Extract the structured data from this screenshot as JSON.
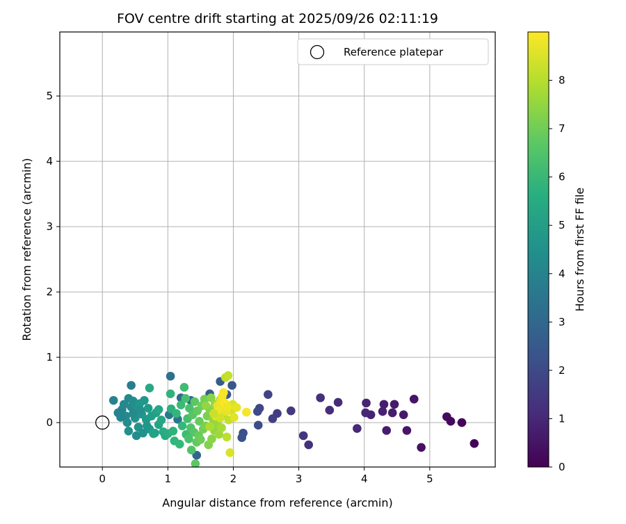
{
  "chart_data": {
    "type": "scatter",
    "title": "FOV centre drift starting at 2025/09/26 02:11:19",
    "xlabel": "Angular distance from reference (arcmin)",
    "ylabel": "Rotation from reference (arcmin)",
    "xlim": [
      -0.65,
      6.0
    ],
    "ylim": [
      -0.68,
      5.98
    ],
    "xticks": [
      0,
      1,
      2,
      3,
      4,
      5
    ],
    "yticks": [
      0,
      1,
      2,
      3,
      4,
      5
    ],
    "grid": true,
    "legend": {
      "position": "top-right",
      "entries": [
        "Reference platepar"
      ]
    },
    "reference_point": {
      "x": 0,
      "y": 0,
      "label": "Reference platepar"
    },
    "colorbar": {
      "label": "Hours from first FF file",
      "colormap": "viridis",
      "range": [
        0,
        9
      ],
      "ticks": [
        0,
        1,
        2,
        3,
        4,
        5,
        6,
        7,
        8
      ]
    },
    "points": [
      {
        "x": 5.68,
        "y": -0.32,
        "c": 0.05
      },
      {
        "x": 5.49,
        "y": 0.0,
        "c": 0.1
      },
      {
        "x": 5.32,
        "y": 0.02,
        "c": 0.2
      },
      {
        "x": 5.26,
        "y": 0.09,
        "c": 0.25
      },
      {
        "x": 4.87,
        "y": -0.38,
        "c": 0.4
      },
      {
        "x": 4.76,
        "y": 0.36,
        "c": 0.5
      },
      {
        "x": 4.65,
        "y": -0.12,
        "c": 0.55
      },
      {
        "x": 4.6,
        "y": 0.12,
        "c": 0.6
      },
      {
        "x": 4.46,
        "y": 0.28,
        "c": 0.65
      },
      {
        "x": 4.43,
        "y": 0.15,
        "c": 0.7
      },
      {
        "x": 4.34,
        "y": -0.12,
        "c": 0.7
      },
      {
        "x": 4.3,
        "y": 0.28,
        "c": 0.75
      },
      {
        "x": 4.28,
        "y": 0.17,
        "c": 0.8
      },
      {
        "x": 4.1,
        "y": 0.12,
        "c": 0.85
      },
      {
        "x": 4.03,
        "y": 0.3,
        "c": 0.9
      },
      {
        "x": 4.02,
        "y": 0.15,
        "c": 0.95
      },
      {
        "x": 3.89,
        "y": -0.09,
        "c": 1.0
      },
      {
        "x": 3.6,
        "y": 0.31,
        "c": 1.1
      },
      {
        "x": 3.47,
        "y": 0.19,
        "c": 1.15
      },
      {
        "x": 3.33,
        "y": 0.38,
        "c": 1.2
      },
      {
        "x": 3.15,
        "y": -0.34,
        "c": 1.3
      },
      {
        "x": 3.07,
        "y": -0.2,
        "c": 1.35
      },
      {
        "x": 2.88,
        "y": 0.18,
        "c": 1.5
      },
      {
        "x": 2.67,
        "y": 0.14,
        "c": 1.6
      },
      {
        "x": 2.6,
        "y": 0.06,
        "c": 1.7
      },
      {
        "x": 2.53,
        "y": 0.43,
        "c": 1.8
      },
      {
        "x": 2.4,
        "y": 0.22,
        "c": 1.9
      },
      {
        "x": 2.37,
        "y": 0.17,
        "c": 2.0
      },
      {
        "x": 2.38,
        "y": -0.04,
        "c": 2.1
      },
      {
        "x": 2.15,
        "y": -0.16,
        "c": 2.2
      },
      {
        "x": 2.13,
        "y": -0.23,
        "c": 2.3
      },
      {
        "x": 1.98,
        "y": 0.57,
        "c": 2.4
      },
      {
        "x": 1.9,
        "y": 0.43,
        "c": 2.5
      },
      {
        "x": 1.8,
        "y": 0.63,
        "c": 2.6
      },
      {
        "x": 1.64,
        "y": 0.44,
        "c": 2.7
      },
      {
        "x": 1.44,
        "y": -0.5,
        "c": 2.9
      },
      {
        "x": 1.35,
        "y": 0.34,
        "c": 3.0
      },
      {
        "x": 1.2,
        "y": 0.38,
        "c": 3.1
      },
      {
        "x": 1.04,
        "y": 0.71,
        "c": 3.3
      },
      {
        "x": 1.15,
        "y": 0.05,
        "c": 3.5
      },
      {
        "x": 1.02,
        "y": 0.12,
        "c": 3.6
      },
      {
        "x": 0.44,
        "y": 0.57,
        "c": 3.8
      },
      {
        "x": 0.17,
        "y": 0.34,
        "c": 4.0
      },
      {
        "x": 0.3,
        "y": 0.2,
        "c": 4.1
      },
      {
        "x": 0.33,
        "y": 0.28,
        "c": 4.2
      },
      {
        "x": 0.36,
        "y": 0.1,
        "c": 4.3
      },
      {
        "x": 0.4,
        "y": 0.37,
        "c": 4.2
      },
      {
        "x": 0.44,
        "y": 0.24,
        "c": 4.3
      },
      {
        "x": 0.47,
        "y": 0.33,
        "c": 4.4
      },
      {
        "x": 0.38,
        "y": 0.0,
        "c": 4.4
      },
      {
        "x": 0.4,
        "y": -0.13,
        "c": 4.5
      },
      {
        "x": 0.5,
        "y": 0.07,
        "c": 4.5
      },
      {
        "x": 0.53,
        "y": 0.23,
        "c": 4.6
      },
      {
        "x": 0.55,
        "y": -0.07,
        "c": 4.6
      },
      {
        "x": 0.57,
        "y": 0.29,
        "c": 4.7
      },
      {
        "x": 0.6,
        "y": 0.13,
        "c": 4.7
      },
      {
        "x": 0.62,
        "y": -0.16,
        "c": 4.6
      },
      {
        "x": 0.64,
        "y": 0.34,
        "c": 4.8
      },
      {
        "x": 0.67,
        "y": 0.05,
        "c": 4.8
      },
      {
        "x": 0.7,
        "y": 0.22,
        "c": 4.9
      },
      {
        "x": 0.72,
        "y": -0.1,
        "c": 4.9
      },
      {
        "x": 0.75,
        "y": 0.1,
        "c": 5.0
      },
      {
        "x": 0.8,
        "y": -0.16,
        "c": 5.0
      },
      {
        "x": 0.82,
        "y": 0.15,
        "c": 5.1
      },
      {
        "x": 0.86,
        "y": -0.03,
        "c": 5.2
      },
      {
        "x": 0.24,
        "y": 0.15,
        "c": 4.0
      },
      {
        "x": 0.28,
        "y": 0.08,
        "c": 4.1
      },
      {
        "x": 0.52,
        "y": -0.2,
        "c": 4.4
      },
      {
        "x": 0.58,
        "y": 0.19,
        "c": 4.5
      },
      {
        "x": 0.47,
        "y": 0.14,
        "c": 4.3
      },
      {
        "x": 0.68,
        "y": -0.05,
        "c": 4.7
      },
      {
        "x": 0.72,
        "y": 0.53,
        "c": 5.4
      },
      {
        "x": 0.86,
        "y": 0.2,
        "c": 5.3
      },
      {
        "x": 0.9,
        "y": 0.04,
        "c": 5.3
      },
      {
        "x": 0.93,
        "y": -0.14,
        "c": 5.5
      },
      {
        "x": 0.78,
        "y": -0.17,
        "c": 5.2
      },
      {
        "x": 0.96,
        "y": -0.2,
        "c": 5.4
      },
      {
        "x": 1.0,
        "y": -0.17,
        "c": 5.6
      },
      {
        "x": 1.04,
        "y": 0.44,
        "c": 5.8
      },
      {
        "x": 1.05,
        "y": 0.21,
        "c": 5.7
      },
      {
        "x": 1.08,
        "y": -0.13,
        "c": 5.8
      },
      {
        "x": 1.1,
        "y": -0.28,
        "c": 5.9
      },
      {
        "x": 1.13,
        "y": 0.14,
        "c": 5.9
      },
      {
        "x": 1.18,
        "y": -0.33,
        "c": 6.0
      },
      {
        "x": 1.2,
        "y": 0.27,
        "c": 6.1
      },
      {
        "x": 1.22,
        "y": -0.05,
        "c": 6.0
      },
      {
        "x": 1.25,
        "y": 0.54,
        "c": 6.2
      },
      {
        "x": 1.27,
        "y": 0.37,
        "c": 6.3
      },
      {
        "x": 1.28,
        "y": -0.18,
        "c": 6.2
      },
      {
        "x": 1.3,
        "y": 0.06,
        "c": 6.3
      },
      {
        "x": 1.32,
        "y": -0.25,
        "c": 6.4
      },
      {
        "x": 1.33,
        "y": 0.22,
        "c": 6.4
      },
      {
        "x": 1.35,
        "y": -0.08,
        "c": 6.5
      },
      {
        "x": 1.36,
        "y": -0.42,
        "c": 6.5
      },
      {
        "x": 1.38,
        "y": 0.12,
        "c": 6.6
      },
      {
        "x": 1.4,
        "y": -0.15,
        "c": 6.6
      },
      {
        "x": 1.41,
        "y": 0.32,
        "c": 6.7
      },
      {
        "x": 1.42,
        "y": -0.63,
        "c": 6.7
      },
      {
        "x": 1.44,
        "y": -0.3,
        "c": 6.8
      },
      {
        "x": 1.45,
        "y": 0.18,
        "c": 6.8
      },
      {
        "x": 1.47,
        "y": -0.2,
        "c": 6.9
      },
      {
        "x": 1.48,
        "y": 0.02,
        "c": 6.9
      },
      {
        "x": 1.5,
        "y": -0.26,
        "c": 7.0
      },
      {
        "x": 1.52,
        "y": 0.26,
        "c": 7.0
      },
      {
        "x": 1.54,
        "y": -0.1,
        "c": 7.1
      },
      {
        "x": 1.56,
        "y": 0.36,
        "c": 7.1
      },
      {
        "x": 1.58,
        "y": -0.05,
        "c": 7.2
      },
      {
        "x": 1.6,
        "y": 0.1,
        "c": 7.2
      },
      {
        "x": 1.62,
        "y": -0.34,
        "c": 7.3
      },
      {
        "x": 1.64,
        "y": 0.2,
        "c": 7.3
      },
      {
        "x": 1.66,
        "y": 0.38,
        "c": 7.4
      },
      {
        "x": 1.67,
        "y": -0.25,
        "c": 7.4
      },
      {
        "x": 1.69,
        "y": 0.05,
        "c": 7.5
      },
      {
        "x": 1.71,
        "y": -0.12,
        "c": 7.5
      },
      {
        "x": 1.72,
        "y": 0.28,
        "c": 7.6
      },
      {
        "x": 1.75,
        "y": 0.0,
        "c": 7.6
      },
      {
        "x": 1.77,
        "y": 0.16,
        "c": 7.7
      },
      {
        "x": 1.78,
        "y": -0.18,
        "c": 7.7
      },
      {
        "x": 1.8,
        "y": 0.35,
        "c": 7.8
      },
      {
        "x": 1.82,
        "y": -0.08,
        "c": 7.8
      },
      {
        "x": 1.84,
        "y": 0.22,
        "c": 7.9
      },
      {
        "x": 1.86,
        "y": 0.12,
        "c": 8.0
      },
      {
        "x": 1.88,
        "y": 0.69,
        "c": 8.1
      },
      {
        "x": 1.9,
        "y": -0.22,
        "c": 8.1
      },
      {
        "x": 1.92,
        "y": 0.72,
        "c": 8.2
      },
      {
        "x": 1.93,
        "y": 0.04,
        "c": 8.2
      },
      {
        "x": 1.95,
        "y": -0.46,
        "c": 8.5
      },
      {
        "x": 1.97,
        "y": 0.18,
        "c": 8.4
      },
      {
        "x": 1.99,
        "y": 0.28,
        "c": 8.5
      },
      {
        "x": 2.01,
        "y": 0.08,
        "c": 8.6
      },
      {
        "x": 2.05,
        "y": 0.23,
        "c": 8.7
      },
      {
        "x": 2.2,
        "y": 0.16,
        "c": 8.9
      },
      {
        "x": 1.73,
        "y": 0.1,
        "c": 8.6
      },
      {
        "x": 1.76,
        "y": 0.26,
        "c": 8.7
      },
      {
        "x": 1.79,
        "y": 0.2,
        "c": 8.8
      },
      {
        "x": 1.81,
        "y": 0.33,
        "c": 8.8
      },
      {
        "x": 1.83,
        "y": 0.4,
        "c": 8.9
      },
      {
        "x": 1.85,
        "y": 0.46,
        "c": 8.9
      },
      {
        "x": 1.87,
        "y": 0.3,
        "c": 8.95
      },
      {
        "x": 1.89,
        "y": 0.17,
        "c": 8.7
      },
      {
        "x": 1.91,
        "y": 0.24,
        "c": 8.8
      },
      {
        "x": 1.8,
        "y": 0.07,
        "c": 8.4
      },
      {
        "x": 1.7,
        "y": 0.14,
        "c": 8.3
      },
      {
        "x": 1.64,
        "y": -0.06,
        "c": 7.9
      },
      {
        "x": 1.58,
        "y": 0.26,
        "c": 7.5
      }
    ]
  }
}
